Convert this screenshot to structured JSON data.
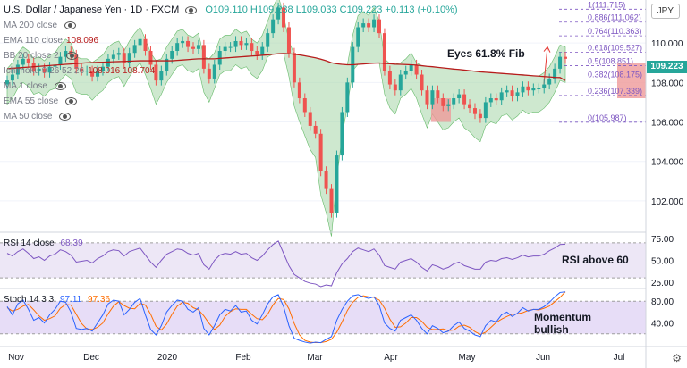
{
  "header": {
    "title": "U.S. Dollar / Japanese Yen · 1D · FXCM",
    "ohlc": "O109.110 H109.238 L109.033 C109.223 +0.113 (+0.10%)"
  },
  "indicators": [
    {
      "label": "MA 200 close",
      "value": ""
    },
    {
      "label": "EMA 110 close",
      "value": "108.096"
    },
    {
      "label": "BB 20 close 2",
      "value": ""
    },
    {
      "label": "Ichimoku 9 26 52 26",
      "value": "108.016  108.704"
    },
    {
      "label": "MA 1 close",
      "value": ""
    },
    {
      "label": "EMA 55 close",
      "value": ""
    },
    {
      "label": "MA 50 close",
      "value": ""
    }
  ],
  "currency_button": "JPY",
  "last_price": "109.223",
  "annotations": {
    "fib_target": "Eyes 61.8% Fib",
    "rsi_note": "RSI above 60",
    "stoch_note_1": "Momentum",
    "stoch_note_2": "bullish"
  },
  "rsi_panel": {
    "label": "RSI 14 close",
    "value": "68.39"
  },
  "stoch_panel": {
    "label": "Stoch 14 3 3",
    "k": "97.11",
    "d": "97.36"
  },
  "colors": {
    "up": "#26a69a",
    "down": "#ef5350",
    "ema": "#b71c1c",
    "cloud_green": "#a5d6a7",
    "cloud_red": "#ef9a9a",
    "rsi": "#7e57c2",
    "fib": "#7e57c2",
    "k": "#2962ff",
    "d": "#ff6d00"
  },
  "chart_data": {
    "type": "candlestick",
    "ylim": [
      100.5,
      112.0
    ],
    "y_ticks": [
      102,
      104,
      106,
      108,
      110
    ],
    "x_ticks": [
      "Nov",
      "Dec",
      "2020",
      "Feb",
      "Mar",
      "Apr",
      "May",
      "Jun",
      "Jul"
    ],
    "fib_levels": [
      {
        "ratio": "1",
        "price": 111.715
      },
      {
        "ratio": "0.886",
        "price": 111.062
      },
      {
        "ratio": "0.764",
        "price": 110.363
      },
      {
        "ratio": "0.618",
        "price": 109.527
      },
      {
        "ratio": "0.5",
        "price": 108.851
      },
      {
        "ratio": "0.382",
        "price": 108.175
      },
      {
        "ratio": "0.236",
        "price": 107.339
      },
      {
        "ratio": "0",
        "price": 105.987
      }
    ],
    "close_series": [
      108.1,
      108.4,
      108.9,
      109.2,
      109.0,
      108.6,
      108.7,
      108.5,
      108.8,
      108.9,
      109.3,
      109.6,
      109.4,
      108.7,
      108.6,
      108.6,
      108.3,
      108.6,
      108.8,
      109.2,
      109.4,
      109.5,
      109.0,
      109.5,
      109.9,
      110.2,
      109.6,
      108.9,
      108.1,
      108.6,
      109.2,
      109.6,
      110.0,
      110.1,
      109.8,
      109.7,
      109.9,
      108.7,
      108.2,
      108.9,
      109.6,
      109.8,
      109.8,
      110.1,
      109.9,
      110.0,
      109.6,
      109.4,
      109.8,
      110.5,
      111.2,
      111.8,
      110.8,
      109.5,
      108.0,
      107.2,
      106.5,
      105.8,
      105.4,
      103.5,
      102.6,
      101.4,
      104.3,
      106.5,
      108.0,
      109.8,
      110.8,
      111.0,
      110.8,
      111.2,
      110.5,
      108.6,
      107.9,
      107.6,
      108.4,
      108.6,
      108.9,
      108.4,
      107.6,
      106.9,
      107.6,
      107.2,
      106.8,
      106.9,
      107.2,
      107.4,
      106.9,
      106.7,
      106.4,
      106.2,
      107.0,
      107.2,
      107.1,
      107.5,
      107.6,
      107.3,
      107.5,
      107.8,
      107.6,
      107.7,
      107.7,
      107.9,
      108.2,
      108.7,
      109.3,
      109.2
    ],
    "ema110": [
      108.7,
      108.72,
      108.74,
      108.76,
      108.78,
      108.8,
      108.82,
      108.84,
      108.86,
      108.88,
      108.9,
      108.92,
      108.94,
      108.96,
      108.98,
      109.0,
      109.01,
      109.02,
      109.03,
      109.04,
      109.05,
      109.06,
      109.07,
      109.08,
      109.09,
      109.1,
      109.1,
      109.1,
      109.1,
      109.1,
      109.1,
      109.1,
      109.12,
      109.14,
      109.16,
      109.18,
      109.2,
      109.2,
      109.2,
      109.2,
      109.22,
      109.24,
      109.26,
      109.28,
      109.3,
      109.32,
      109.34,
      109.36,
      109.38,
      109.4,
      109.43,
      109.46,
      109.47,
      109.46,
      109.43,
      109.4,
      109.35,
      109.3,
      109.25,
      109.18,
      109.1,
      109.0,
      108.95,
      108.92,
      108.9,
      108.9,
      108.92,
      108.94,
      108.96,
      108.98,
      108.99,
      108.97,
      108.95,
      108.93,
      108.92,
      108.91,
      108.9,
      108.88,
      108.85,
      108.82,
      108.8,
      108.77,
      108.74,
      108.71,
      108.68,
      108.66,
      108.63,
      108.6,
      108.57,
      108.54,
      108.52,
      108.5,
      108.48,
      108.46,
      108.44,
      108.42,
      108.4,
      108.38,
      108.36,
      108.34,
      108.32,
      108.3,
      108.28,
      108.26,
      108.25,
      108.1
    ],
    "rsi": {
      "ylim": [
        20,
        80
      ],
      "ticks": [
        25,
        50,
        75
      ],
      "values": [
        58,
        55,
        60,
        63,
        58,
        52,
        54,
        50,
        55,
        57,
        62,
        60,
        56,
        48,
        49,
        50,
        47,
        52,
        55,
        60,
        62,
        61,
        55,
        60,
        62,
        64,
        56,
        48,
        42,
        50,
        57,
        60,
        63,
        62,
        58,
        56,
        58,
        45,
        40,
        50,
        56,
        58,
        57,
        60,
        57,
        58,
        53,
        50,
        55,
        62,
        68,
        72,
        58,
        44,
        34,
        30,
        26,
        24,
        23,
        20,
        22,
        21,
        36,
        46,
        52,
        60,
        64,
        62,
        60,
        63,
        56,
        44,
        42,
        40,
        48,
        50,
        52,
        48,
        42,
        38,
        45,
        43,
        40,
        42,
        46,
        48,
        44,
        42,
        40,
        40,
        48,
        50,
        49,
        52,
        53,
        51,
        53,
        56,
        54,
        55,
        55,
        57,
        61,
        64,
        68,
        68.39
      ]
    },
    "stoch": {
      "ylim": [
        0,
        100
      ],
      "ticks": [
        40,
        80
      ],
      "k": [
        70,
        55,
        75,
        82,
        65,
        45,
        50,
        40,
        55,
        65,
        80,
        78,
        60,
        30,
        28,
        30,
        25,
        40,
        55,
        75,
        82,
        80,
        55,
        65,
        78,
        85,
        55,
        28,
        18,
        35,
        60,
        72,
        82,
        80,
        65,
        60,
        68,
        30,
        18,
        35,
        55,
        65,
        62,
        72,
        60,
        62,
        45,
        38,
        55,
        75,
        88,
        92,
        70,
        35,
        12,
        8,
        5,
        3,
        5,
        4,
        10,
        15,
        45,
        65,
        80,
        90,
        92,
        88,
        85,
        88,
        72,
        40,
        30,
        25,
        45,
        50,
        55,
        45,
        30,
        20,
        35,
        30,
        22,
        25,
        35,
        42,
        30,
        25,
        18,
        15,
        35,
        45,
        42,
        55,
        60,
        52,
        58,
        68,
        62,
        65,
        65,
        70,
        78,
        88,
        96,
        97.11
      ],
      "d": [
        68,
        62,
        65,
        71,
        74,
        64,
        53,
        45,
        48,
        53,
        67,
        74,
        73,
        56,
        39,
        29,
        28,
        32,
        40,
        57,
        71,
        79,
        72,
        67,
        66,
        76,
        73,
        56,
        34,
        27,
        38,
        56,
        71,
        78,
        76,
        68,
        64,
        53,
        39,
        28,
        36,
        52,
        61,
        66,
        65,
        65,
        56,
        48,
        46,
        56,
        73,
        85,
        83,
        66,
        39,
        18,
        8,
        5,
        4,
        4,
        6,
        10,
        23,
        42,
        63,
        78,
        87,
        90,
        88,
        87,
        82,
        67,
        47,
        32,
        33,
        40,
        50,
        50,
        43,
        32,
        28,
        28,
        29,
        26,
        27,
        34,
        36,
        32,
        24,
        19,
        23,
        32,
        41,
        47,
        52,
        56,
        57,
        59,
        63,
        65,
        64,
        67,
        71,
        79,
        87,
        97.36
      ]
    }
  }
}
